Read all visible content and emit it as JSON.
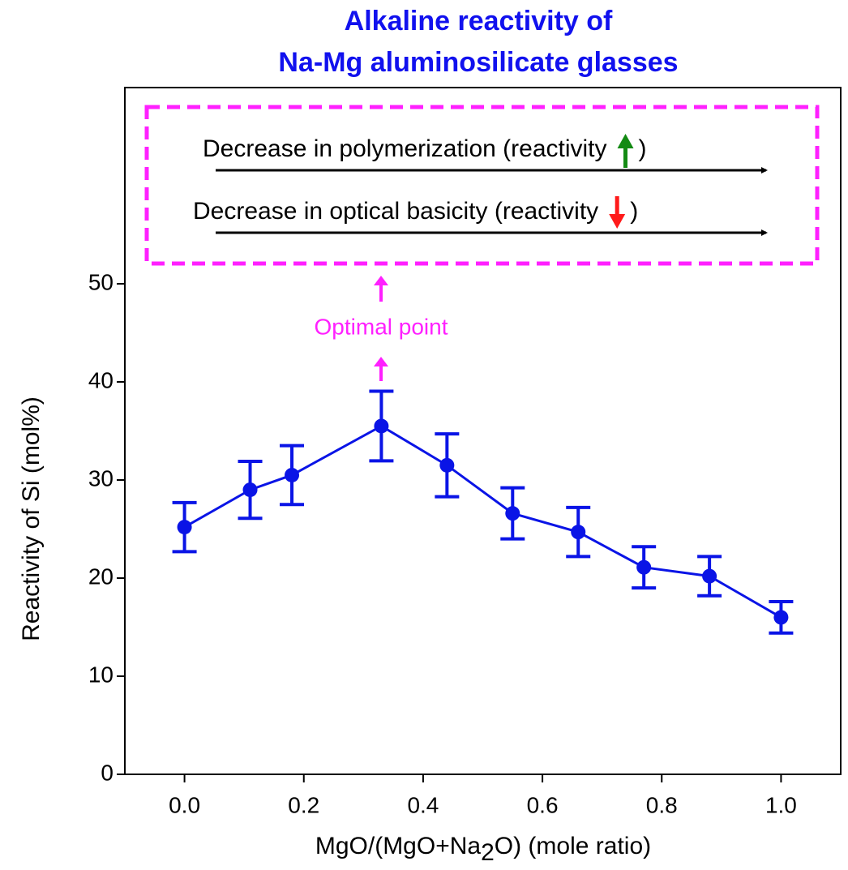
{
  "chart_data": {
    "type": "line",
    "title": [
      "Alkaline reactivity of",
      "Na-Mg aluminosilicate glasses"
    ],
    "x_label": [
      "MgO/(MgO+Na",
      "2",
      "O) (mole ratio)"
    ],
    "y_label": "Reactivity of Si  (mol%)",
    "x": [
      0,
      0.11,
      0.18,
      0.33,
      0.44,
      0.55,
      0.66,
      0.77,
      0.88,
      1.0
    ],
    "series": [
      {
        "color": "#0a14e6",
        "values": [
          25.2,
          29.0,
          30.5,
          35.5,
          31.5,
          26.6,
          24.7,
          21.1,
          20.2,
          16.0
        ],
        "errors": [
          2.5,
          2.9,
          3.0,
          3.55,
          3.2,
          2.6,
          2.5,
          2.1,
          2.0,
          1.6
        ]
      }
    ],
    "xlim": [
      -0.1,
      1.1
    ],
    "xticks": [
      {
        "value": 0,
        "label": "0.0"
      },
      0.2,
      0.4,
      0.6,
      0.8,
      {
        "value": 1,
        "label": "1.0"
      }
    ],
    "ylim": [
      0,
      70
    ],
    "yticks": [
      0,
      10,
      20,
      30,
      40,
      50
    ],
    "annotations": [
      {
        "text": "Decrease in polymerization (reactivity",
        "close": ")",
        "arrow": "up",
        "arrow_color": "#138a13"
      },
      {
        "text": "Decrease in optical basicity (reactivity",
        "close": ")",
        "arrow": "down",
        "arrow_color": "#ff1a1a"
      }
    ],
    "optimal_label": "Optimal point",
    "highlight_color": "#ff20ff"
  }
}
